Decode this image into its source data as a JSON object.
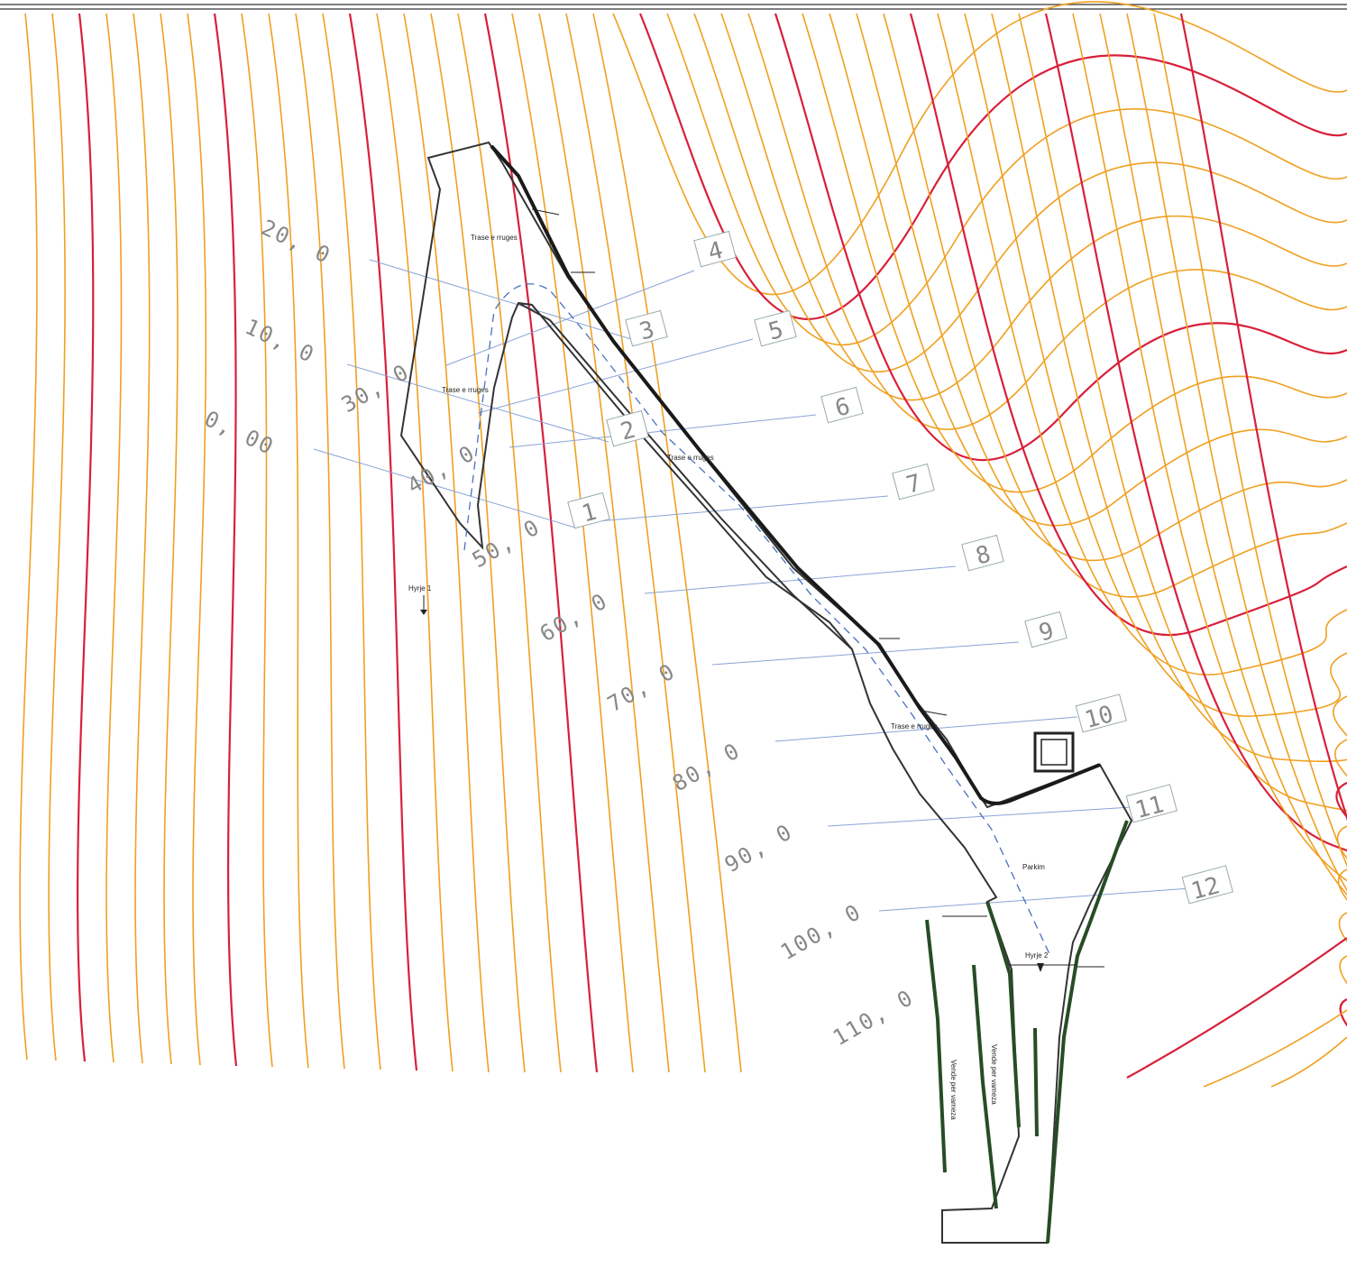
{
  "distance_labels": [
    "0, 00",
    "10, 0",
    "20, 0",
    "30, 0",
    "40, 0",
    "50, 0",
    "60, 0",
    "70, 0",
    "80, 0",
    "90, 0",
    "100, 0",
    "110, 0"
  ],
  "section_numbers": [
    "1",
    "2",
    "3",
    "4",
    "5",
    "6",
    "7",
    "8",
    "9",
    "10",
    "11",
    "12"
  ],
  "area_labels": {
    "trase_1": "Trase e rruges",
    "trase_2": "Trase e rruges",
    "trase_3": "Trase e rruges",
    "trase_4": "Trase e rruges",
    "parking": "Parkim",
    "entrance_1": "Hyrje 1",
    "entrance_2": "Hyrje 2",
    "vending_1": "Vende per vameza",
    "vending_2": "Vende per vameza"
  },
  "colors": {
    "contour_minor": "#f0a020",
    "contour_major": "#d8203a",
    "section_line": "#8aa4d8",
    "road_axis": "#4a70c0",
    "wall_green": "#264d26"
  }
}
